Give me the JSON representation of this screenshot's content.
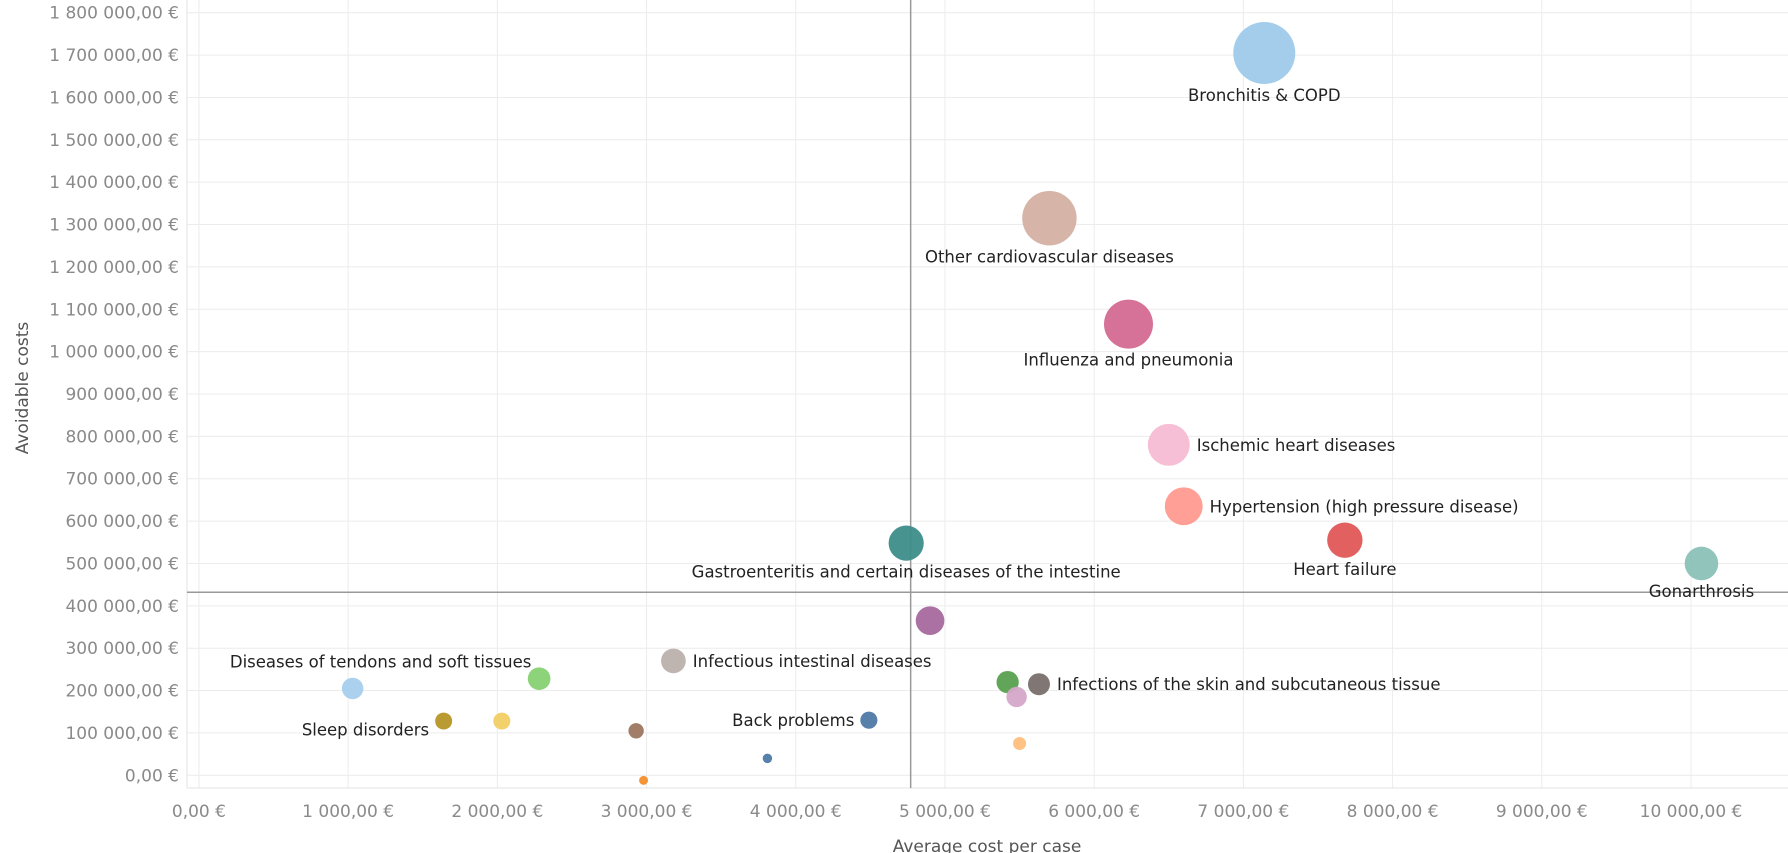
{
  "chart_data": {
    "type": "scatter",
    "xlabel": "Average cost per case",
    "ylabel": "Avoidable costs",
    "xlim": [
      -80,
      10650
    ],
    "ylim": [
      -30000,
      1830000
    ],
    "x_ticks": [
      0,
      1000,
      2000,
      3000,
      4000,
      5000,
      6000,
      7000,
      8000,
      9000,
      10000
    ],
    "x_tick_labels": [
      "0,00 €",
      "1 000,00 €",
      "2 000,00 €",
      "3 000,00 €",
      "4 000,00 €",
      "5 000,00 €",
      "6 000,00 €",
      "7 000,00 €",
      "8 000,00 €",
      "9 000,00 €",
      "10 000,00 €"
    ],
    "y_ticks": [
      0,
      100000,
      200000,
      300000,
      400000,
      500000,
      600000,
      700000,
      800000,
      900000,
      1000000,
      1100000,
      1200000,
      1300000,
      1400000,
      1500000,
      1600000,
      1700000,
      1800000
    ],
    "y_tick_labels": [
      "0,00 €",
      "100 000,00 €",
      "200 000,00 €",
      "300 000,00 €",
      "400 000,00 €",
      "500 000,00 €",
      "600 000,00 €",
      "700 000,00 €",
      "800 000,00 €",
      "900 000,00 €",
      "1 000 000,00 €",
      "1 100 000,00 €",
      "1 200 000,00 €",
      "1 300 000,00 €",
      "1 400 000,00 €",
      "1 500 000,00 €",
      "1 600 000,00 €",
      "1 700 000,00 €",
      "1 800 000,00 €"
    ],
    "grid": true,
    "reference_lines": {
      "x": 4770,
      "y": 432000
    },
    "points": [
      {
        "label": "Bronchitis & COPD",
        "x": 7140,
        "y": 1705000,
        "color": "#9ecae9",
        "size": 1705000,
        "label_pos": "below"
      },
      {
        "label": "Other cardiovascular diseases",
        "x": 5700,
        "y": 1315000,
        "color": "#d4b0a3",
        "size": 1315000,
        "label_pos": "below"
      },
      {
        "label": "Influenza and pneumonia",
        "x": 6230,
        "y": 1065000,
        "color": "#d46a92",
        "size": 1065000,
        "label_pos": "below"
      },
      {
        "label": "Ischemic heart diseases",
        "x": 6500,
        "y": 780000,
        "color": "#f7bcd3",
        "size": 780000,
        "label_pos": "right"
      },
      {
        "label": "Hypertension (high pressure disease)",
        "x": 6600,
        "y": 635000,
        "color": "#ff9a90",
        "size": 635000,
        "label_pos": "right"
      },
      {
        "label": "Heart failure",
        "x": 7680,
        "y": 555000,
        "color": "#e15759",
        "size": 555000,
        "label_pos": "below"
      },
      {
        "label": "Gastroenteritis and certain diseases of the intestine",
        "x": 4740,
        "y": 548000,
        "color": "#3d8d8a",
        "size": 548000,
        "label_pos": "below"
      },
      {
        "label": "Gonarthrosis",
        "x": 10070,
        "y": 500000,
        "color": "#8bc1b6",
        "size": 500000,
        "label_pos": "below"
      },
      {
        "label": "",
        "x": 4900,
        "y": 365000,
        "color": "#a5699d",
        "size": 365000,
        "label_pos": "none"
      },
      {
        "label": "Infectious intestinal diseases",
        "x": 3180,
        "y": 270000,
        "color": "#bbb0ac",
        "size": 270000,
        "label_pos": "right"
      },
      {
        "label": "",
        "x": 2280,
        "y": 228000,
        "color": "#86d172",
        "size": 228000,
        "label_pos": "none"
      },
      {
        "label": "Diseases of tendons and soft tissues",
        "x": 1030,
        "y": 205000,
        "color": "#a7cfed",
        "size": 205000,
        "label_pos": "above"
      },
      {
        "label": "Infections of the skin and subcutaneous tissue",
        "x": 5630,
        "y": 215000,
        "color": "#79706e",
        "size": 215000,
        "label_pos": "right"
      },
      {
        "label": "",
        "x": 5420,
        "y": 220000,
        "color": "#59a14f",
        "size": 220000,
        "label_pos": "none"
      },
      {
        "label": "",
        "x": 5480,
        "y": 185000,
        "color": "#d4a6c8",
        "size": 185000,
        "label_pos": "none"
      },
      {
        "label": "Sleep disorders",
        "x": 1640,
        "y": 128000,
        "color": "#b69626",
        "size": 128000,
        "label_pos": "below-left"
      },
      {
        "label": "",
        "x": 2030,
        "y": 128000,
        "color": "#f1ce63",
        "size": 128000,
        "label_pos": "none"
      },
      {
        "label": "Back problems",
        "x": 4490,
        "y": 130000,
        "color": "#4e79a7",
        "size": 130000,
        "label_pos": "left"
      },
      {
        "label": "",
        "x": 2930,
        "y": 105000,
        "color": "#9d7660",
        "size": 105000,
        "label_pos": "none"
      },
      {
        "label": "",
        "x": 5500,
        "y": 75000,
        "color": "#ffbe7d",
        "size": 75000,
        "label_pos": "none"
      },
      {
        "label": "",
        "x": 3810,
        "y": 40000,
        "color": "#4e79a7",
        "size": 40000,
        "label_pos": "none"
      },
      {
        "label": "",
        "x": 2980,
        "y": -12000,
        "color": "#f28e2b",
        "size": 12000,
        "label_pos": "none"
      }
    ]
  }
}
